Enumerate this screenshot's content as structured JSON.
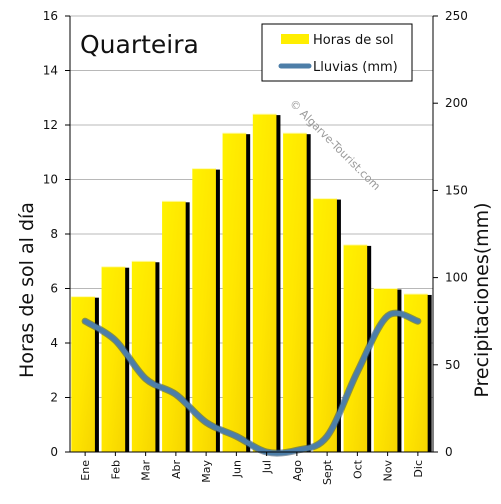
{
  "chart_data": {
    "type": "bar+line",
    "title": "Quarteira",
    "categories": [
      "Ene",
      "Feb",
      "Mar",
      "Abr",
      "May",
      "Jun",
      "Jul",
      "Ago",
      "Sept",
      "Oct",
      "Nov",
      "Dic"
    ],
    "series": [
      {
        "name": "Horas de sol",
        "type": "bar",
        "axis": "left",
        "color": "#ffee00",
        "values": [
          5.7,
          6.8,
          7.0,
          9.2,
          10.4,
          11.7,
          12.4,
          11.7,
          9.3,
          7.6,
          6.0,
          5.8
        ]
      },
      {
        "name": "Lluvias (mm)",
        "type": "line",
        "axis": "right",
        "color": "#4d7ea8",
        "values": [
          75,
          64,
          42,
          33,
          17,
          9,
          0,
          1,
          9,
          46,
          78,
          75
        ]
      }
    ],
    "ylabel_left": "Horas de sol al día",
    "ylabel_right": "Precipitaciones(mm)",
    "ylim_left": [
      0,
      16
    ],
    "yticks_left": [
      "0",
      "2",
      "4",
      "6",
      "8",
      "10",
      "12",
      "14",
      "16"
    ],
    "ylim_right": [
      0,
      250
    ],
    "yticks_right": [
      "0",
      "50",
      "100",
      "150",
      "200",
      "250"
    ],
    "grid": true,
    "legend_position": "top-right",
    "watermark": "© Algarve-Tourist.com"
  }
}
